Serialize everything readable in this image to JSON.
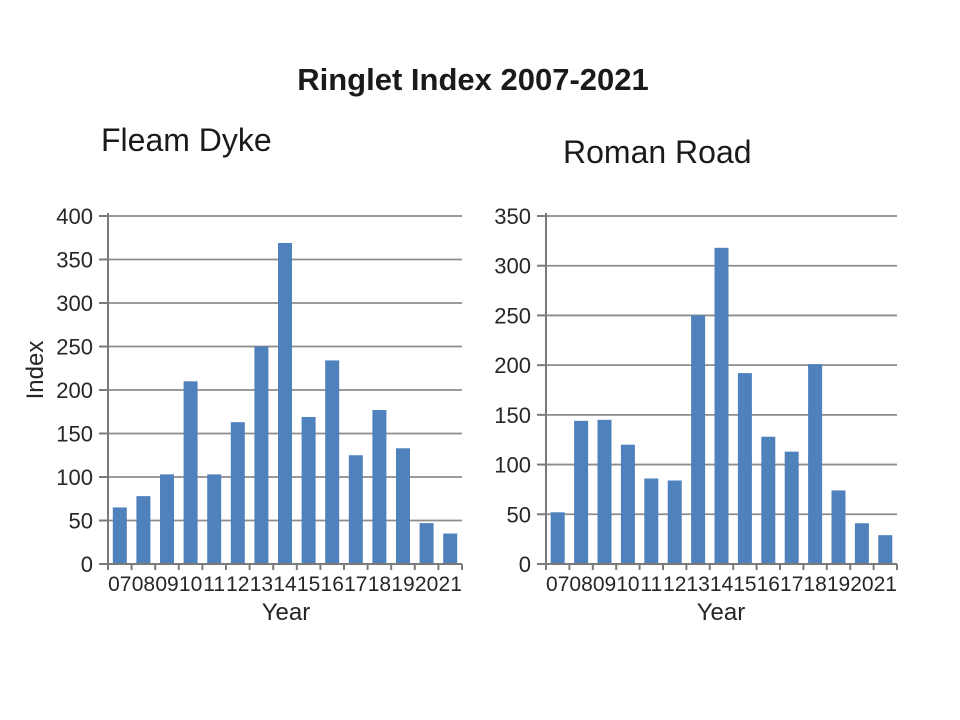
{
  "page_title": "Ringlet Index 2007-2021",
  "colors": {
    "bar": "#4F81BD",
    "gridline": "#8C8C8C",
    "axis": "#7A7A7A",
    "text": "#262626",
    "background": "#FFFFFF"
  },
  "chart_data": [
    {
      "type": "bar",
      "title": "Fleam Dyke",
      "xlabel": "Year",
      "ylabel": "Index",
      "categories": [
        "07",
        "08",
        "09",
        "10",
        "11",
        "12",
        "13",
        "14",
        "15",
        "16",
        "17",
        "18",
        "19",
        "20",
        "21"
      ],
      "values": [
        65,
        78,
        103,
        210,
        103,
        163,
        250,
        369,
        169,
        234,
        125,
        177,
        133,
        47,
        35
      ],
      "ylim": [
        0,
        400
      ],
      "ytick_step": 50,
      "grid": true,
      "legend": "none"
    },
    {
      "type": "bar",
      "title": "Roman Road",
      "xlabel": "Year",
      "ylabel": "",
      "categories": [
        "07",
        "08",
        "09",
        "10",
        "11",
        "12",
        "13",
        "14",
        "15",
        "16",
        "17",
        "18",
        "19",
        "20",
        "21"
      ],
      "values": [
        52,
        144,
        145,
        120,
        86,
        84,
        250,
        318,
        192,
        128,
        113,
        201,
        74,
        41,
        29
      ],
      "ylim": [
        0,
        350
      ],
      "ytick_step": 50,
      "grid": true,
      "legend": "none"
    }
  ]
}
